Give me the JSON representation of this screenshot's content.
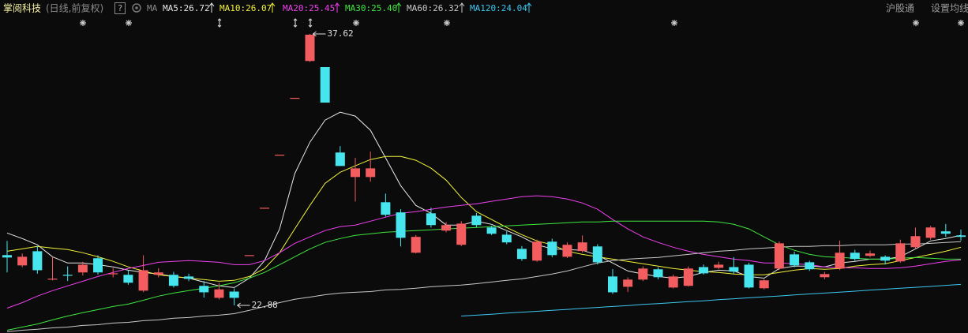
{
  "header": {
    "stock": "掌阅科技",
    "mode": "(日线,前复权)",
    "help": "?",
    "ma": "MA",
    "links": [
      "沪股通",
      "设置均线"
    ]
  },
  "chart_data": {
    "type": "candlestick",
    "up_color": "#f45d60",
    "down_color": "#47e6ee",
    "open": [
      25.61,
      25.05,
      25.82,
      24.28,
      24.54,
      24.67,
      25.44,
      24.58,
      24.54,
      23.68,
      24.54,
      24.54,
      24.45,
      23.94,
      23.29,
      23.63,
      25.61,
      28.18,
      31.06,
      34.15,
      36.15,
      35.82,
      31.18,
      29.85,
      29.85,
      28.48,
      27.93,
      25.74,
      27.88,
      26.94,
      26.17,
      27.75,
      27.11,
      26.72,
      25.95,
      25.31,
      26.34,
      25.52,
      25.83,
      26.08,
      24.45,
      23.89,
      24.28,
      24.84,
      23.85,
      23.94,
      24.96,
      24.92,
      24.96,
      25.09,
      23.81,
      24.88,
      25.65,
      25.22,
      24.41,
      24.88,
      25.74,
      25.57,
      25.52,
      25.27,
      26.04,
      26.55,
      26.9,
      26.68
    ],
    "high": [
      26.38,
      25.7,
      26.1,
      25.52,
      25.0,
      25.25,
      25.6,
      24.9,
      24.8,
      25.6,
      24.9,
      24.7,
      24.6,
      24.2,
      24.1,
      23.8,
      25.61,
      28.18,
      31.06,
      34.15,
      37.62,
      35.82,
      31.53,
      30.89,
      31.23,
      28.95,
      28.1,
      26.7,
      28.18,
      27.4,
      27.45,
      27.9,
      27.2,
      26.9,
      26.1,
      26.45,
      26.5,
      26.3,
      26.68,
      26.2,
      24.85,
      24.4,
      25.0,
      24.95,
      24.55,
      25.0,
      25.1,
      25.25,
      25.5,
      25.2,
      24.3,
      26.35,
      25.8,
      25.3,
      24.7,
      26.4,
      25.9,
      25.85,
      25.6,
      26.45,
      27.1,
      27.2,
      27.3,
      27.0
    ],
    "low": [
      24.67,
      24.95,
      24.6,
      24.24,
      24.2,
      24.5,
      24.55,
      24.4,
      24.0,
      23.6,
      24.4,
      23.85,
      24.2,
      23.3,
      23.2,
      22.88,
      25.61,
      28.18,
      31.06,
      34.15,
      36.1,
      33.89,
      30.45,
      28.52,
      29.6,
      27.7,
      26.08,
      25.7,
      27.1,
      26.85,
      26.1,
      27.1,
      26.7,
      26.2,
      25.3,
      25.25,
      25.5,
      25.45,
      25.75,
      25.1,
      23.5,
      23.6,
      24.2,
      24.3,
      23.8,
      23.9,
      24.55,
      24.85,
      24.6,
      23.8,
      23.75,
      24.8,
      24.95,
      24.75,
      24.3,
      24.8,
      25.3,
      25.5,
      25.1,
      25.2,
      25.95,
      26.45,
      26.6,
      26.4
    ],
    "close": [
      25.48,
      25.52,
      24.79,
      24.33,
      24.49,
      25.09,
      24.67,
      24.62,
      24.11,
      24.79,
      24.67,
      23.94,
      24.32,
      23.59,
      23.75,
      23.29,
      25.61,
      28.18,
      31.06,
      34.15,
      37.58,
      33.89,
      30.45,
      30.32,
      30.32,
      27.8,
      26.55,
      26.6,
      27.24,
      27.24,
      27.32,
      27.24,
      26.77,
      26.3,
      25.4,
      26.34,
      25.61,
      26.17,
      26.3,
      25.22,
      23.59,
      24.28,
      24.88,
      24.41,
      24.45,
      24.88,
      24.62,
      25.09,
      24.71,
      23.85,
      24.24,
      26.25,
      25.05,
      24.84,
      24.58,
      25.74,
      25.4,
      25.7,
      25.31,
      26.25,
      26.64,
      27.11,
      26.77,
      26.6
    ],
    "series": [
      {
        "name": "MA5:26.72",
        "color": "#e8e8e8",
        "values": [
          26.81,
          26.51,
          26.17,
          25.52,
          25.18,
          25.18,
          25.09,
          24.97,
          24.79,
          24.67,
          24.58,
          24.45,
          24.36,
          24.15,
          23.94,
          23.85,
          24.36,
          25.31,
          27.03,
          30.03,
          31.74,
          32.94,
          33.37,
          33.16,
          32.39,
          30.89,
          29.38,
          28.31,
          27.88,
          27.24,
          27.24,
          27.45,
          27.28,
          26.94,
          26.6,
          26.17,
          25.95,
          25.91,
          25.87,
          25.61,
          25.18,
          24.75,
          24.58,
          24.45,
          24.36,
          24.45,
          24.67,
          24.79,
          24.75,
          24.45,
          24.36,
          24.88,
          25.01,
          25.01,
          24.97,
          25.18,
          25.27,
          25.39,
          25.39,
          25.52,
          25.95,
          26.38,
          26.51,
          26.68
        ]
      },
      {
        "name": "MA10:26.07",
        "color": "#f2f23a",
        "values": [
          25.82,
          25.95,
          26.08,
          25.99,
          25.91,
          25.74,
          25.52,
          25.27,
          24.97,
          24.75,
          24.54,
          24.45,
          24.36,
          24.28,
          24.19,
          24.24,
          24.45,
          24.88,
          25.74,
          27.03,
          28.31,
          29.51,
          30.11,
          30.46,
          30.8,
          30.97,
          30.97,
          30.76,
          30.33,
          29.68,
          28.74,
          27.97,
          27.54,
          27.11,
          26.72,
          26.38,
          26.17,
          25.82,
          25.65,
          25.52,
          25.39,
          25.27,
          25.14,
          25.01,
          24.88,
          24.79,
          24.71,
          24.67,
          24.58,
          24.54,
          24.54,
          24.67,
          24.79,
          24.88,
          24.84,
          24.88,
          25.01,
          25.09,
          25.14,
          25.31,
          25.48,
          25.65,
          25.82,
          26.04
        ]
      },
      {
        "name": "MA20:25.45",
        "color": "#f040f0",
        "values": [
          22.73,
          23.03,
          23.38,
          23.68,
          23.94,
          24.19,
          24.45,
          24.67,
          24.88,
          25.05,
          25.22,
          25.27,
          25.31,
          25.27,
          25.22,
          25.09,
          25.09,
          25.31,
          25.74,
          26.25,
          26.6,
          26.94,
          27.15,
          27.24,
          27.45,
          27.67,
          27.88,
          27.97,
          28.1,
          28.22,
          28.31,
          28.4,
          28.53,
          28.65,
          28.78,
          28.83,
          28.78,
          28.65,
          28.44,
          28.1,
          27.54,
          27.03,
          26.6,
          26.3,
          26.04,
          25.82,
          25.65,
          25.52,
          25.39,
          25.31,
          25.18,
          25.18,
          25.14,
          25.09,
          24.97,
          24.92,
          24.92,
          24.88,
          24.88,
          24.92,
          25.01,
          25.14,
          25.27,
          25.35
        ]
      },
      {
        "name": "MA30:25.40",
        "color": "#3ee83e",
        "values": [
          21.53,
          21.7,
          21.87,
          22.09,
          22.3,
          22.48,
          22.65,
          22.82,
          22.95,
          23.16,
          23.38,
          23.55,
          23.68,
          23.81,
          23.94,
          24.11,
          24.36,
          24.67,
          25.09,
          25.52,
          25.95,
          26.3,
          26.51,
          26.68,
          26.77,
          26.85,
          26.9,
          26.94,
          26.98,
          27.03,
          27.07,
          27.11,
          27.15,
          27.2,
          27.24,
          27.28,
          27.32,
          27.37,
          27.41,
          27.41,
          27.45,
          27.45,
          27.45,
          27.45,
          27.45,
          27.45,
          27.45,
          27.41,
          27.28,
          27.03,
          26.6,
          26.17,
          25.87,
          25.65,
          25.52,
          25.48,
          25.44,
          25.39,
          25.39,
          25.44,
          25.48,
          25.44,
          25.39,
          25.39
        ]
      },
      {
        "name": "MA60:26.32",
        "color": "#c8c8c8",
        "values": [
          21.45,
          21.53,
          21.58,
          21.66,
          21.7,
          21.79,
          21.83,
          21.92,
          21.96,
          22.05,
          22.09,
          22.18,
          22.22,
          22.3,
          22.35,
          22.43,
          22.61,
          22.82,
          23.03,
          23.21,
          23.33,
          23.46,
          23.55,
          23.59,
          23.63,
          23.72,
          23.75,
          23.81,
          23.89,
          23.94,
          23.98,
          24.06,
          24.15,
          24.24,
          24.32,
          24.45,
          24.58,
          24.75,
          24.97,
          25.18,
          25.31,
          25.39,
          25.44,
          25.48,
          25.57,
          25.65,
          25.74,
          25.82,
          25.87,
          25.95,
          25.99,
          26.04,
          26.08,
          26.08,
          26.12,
          26.12,
          26.17,
          26.17,
          26.17,
          26.21,
          26.21,
          26.25,
          26.3,
          26.34
        ]
      },
      {
        "name": "MA120:24.04",
        "color": "#3cc8f0",
        "values": [
          null,
          null,
          null,
          null,
          null,
          null,
          null,
          null,
          null,
          null,
          null,
          null,
          null,
          null,
          null,
          null,
          null,
          null,
          null,
          null,
          null,
          null,
          null,
          null,
          null,
          null,
          null,
          null,
          null,
          null,
          22.3,
          22.35,
          22.4,
          22.46,
          22.51,
          22.56,
          22.61,
          22.66,
          22.72,
          22.77,
          22.82,
          22.87,
          22.93,
          22.98,
          23.03,
          23.08,
          23.13,
          23.19,
          23.24,
          23.29,
          23.34,
          23.39,
          23.45,
          23.5,
          23.55,
          23.6,
          23.65,
          23.71,
          23.76,
          23.81,
          23.86,
          23.91,
          23.97,
          24.02
        ]
      }
    ]
  }
}
